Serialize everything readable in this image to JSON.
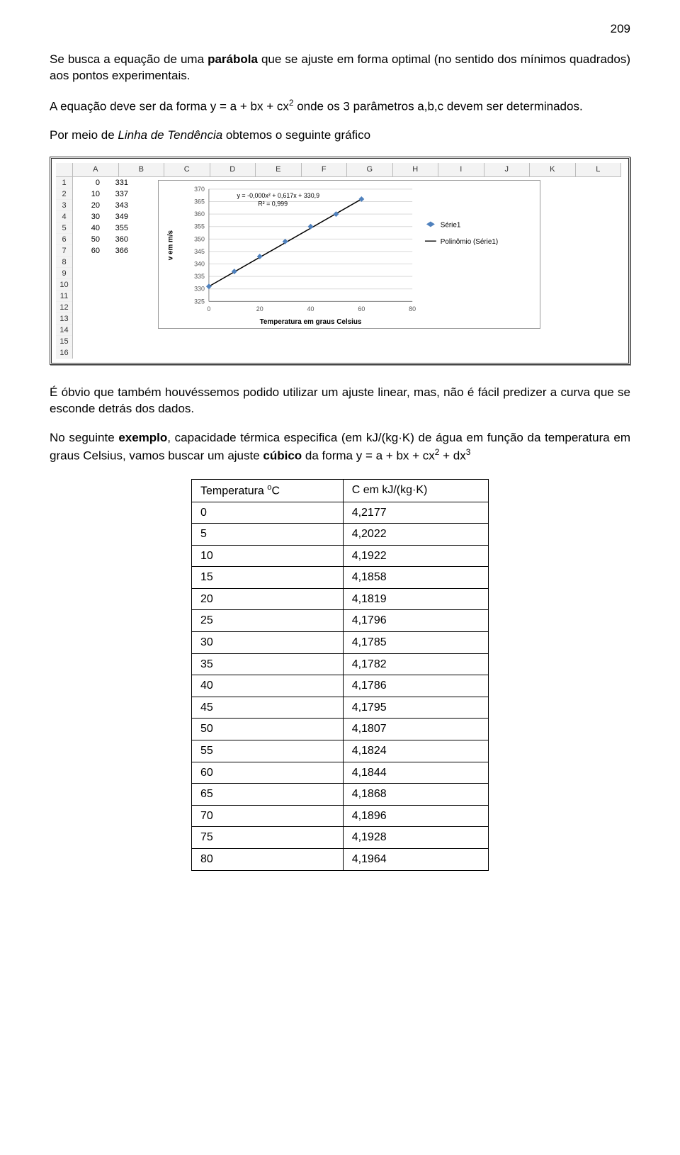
{
  "page_number": "209",
  "p1_a": "Se busca a equação de uma ",
  "p1_bold": "parábola",
  "p1_b": " que se ajuste em forma optimal (no sentido dos mínimos quadrados) aos pontos experimentais.",
  "p2_a": "A equação deve ser da forma y = a + bx + cx",
  "p2_sup": "2",
  "p2_b": " onde os 3 parâmetros a,b,c devem ser determinados.",
  "p3_a": "Por meio de ",
  "p3_it": "Linha de Tendência",
  "p3_b": " obtemos o seguinte gráfico",
  "spreadsheet": {
    "cols": [
      "A",
      "B",
      "C",
      "D",
      "E",
      "F",
      "G",
      "H",
      "I",
      "J",
      "K",
      "L"
    ],
    "rows": 16,
    "data": [
      {
        "a": "0",
        "b": "331"
      },
      {
        "a": "10",
        "b": "337"
      },
      {
        "a": "20",
        "b": "343"
      },
      {
        "a": "30",
        "b": "349"
      },
      {
        "a": "40",
        "b": "355"
      },
      {
        "a": "50",
        "b": "360"
      },
      {
        "a": "60",
        "b": "366"
      }
    ]
  },
  "chart": {
    "equation": "y = -0,000x² + 0,617x + 330,9",
    "r2": "R² = 0,999",
    "y_label": "v em m/s",
    "x_label": "Temperatura em graus Celsius",
    "x_ticks": [
      0,
      20,
      40,
      60,
      80
    ],
    "y_ticks": [
      325,
      330,
      335,
      340,
      345,
      350,
      355,
      360,
      365,
      370
    ],
    "x_range": [
      0,
      80
    ],
    "y_range": [
      325,
      370
    ],
    "series_color": "#4f81bd",
    "trend_color": "#000000",
    "grid_color": "#d9d9d9",
    "axis_color": "#888888",
    "label_fontsize": 10,
    "tick_fontsize": 9,
    "legend": {
      "series": "Série1",
      "trend": "Polinômio (Série1)"
    },
    "points": [
      {
        "x": 0,
        "y": 331
      },
      {
        "x": 10,
        "y": 337
      },
      {
        "x": 20,
        "y": 343
      },
      {
        "x": 30,
        "y": 349
      },
      {
        "x": 40,
        "y": 355
      },
      {
        "x": 50,
        "y": 360
      },
      {
        "x": 60,
        "y": 366
      }
    ]
  },
  "p4": "É óbvio que também houvéssemos podido utilizar um ajuste linear, mas, não é fácil predizer a curva que se esconde detrás dos dados.",
  "p5_a": "No seguinte ",
  "p5_bold": "exemplo",
  "p5_b": ", capacidade térmica especifica (em kJ/(kg·K) de água em função da temperatura em graus Celsius, vamos buscar um ajuste ",
  "p5_bold2": "cúbico",
  "p5_c": " da forma y = a + bx + cx",
  "p5_sup1": "2",
  "p5_d": " + dx",
  "p5_sup2": "3",
  "table": {
    "h1": "Temperatura ",
    "h1_sup": "o",
    "h1_b": "C",
    "h2": "C em kJ/(kg·K)",
    "rows": [
      [
        "0",
        "4,2177"
      ],
      [
        "5",
        "4,2022"
      ],
      [
        "10",
        "4,1922"
      ],
      [
        "15",
        "4,1858"
      ],
      [
        "20",
        "4,1819"
      ],
      [
        "25",
        "4,1796"
      ],
      [
        "30",
        "4,1785"
      ],
      [
        "35",
        "4,1782"
      ],
      [
        "40",
        "4,1786"
      ],
      [
        "45",
        "4,1795"
      ],
      [
        "50",
        "4,1807"
      ],
      [
        "55",
        "4,1824"
      ],
      [
        "60",
        "4,1844"
      ],
      [
        "65",
        "4,1868"
      ],
      [
        "70",
        "4,1896"
      ],
      [
        "75",
        "4,1928"
      ],
      [
        "80",
        "4,1964"
      ]
    ]
  }
}
